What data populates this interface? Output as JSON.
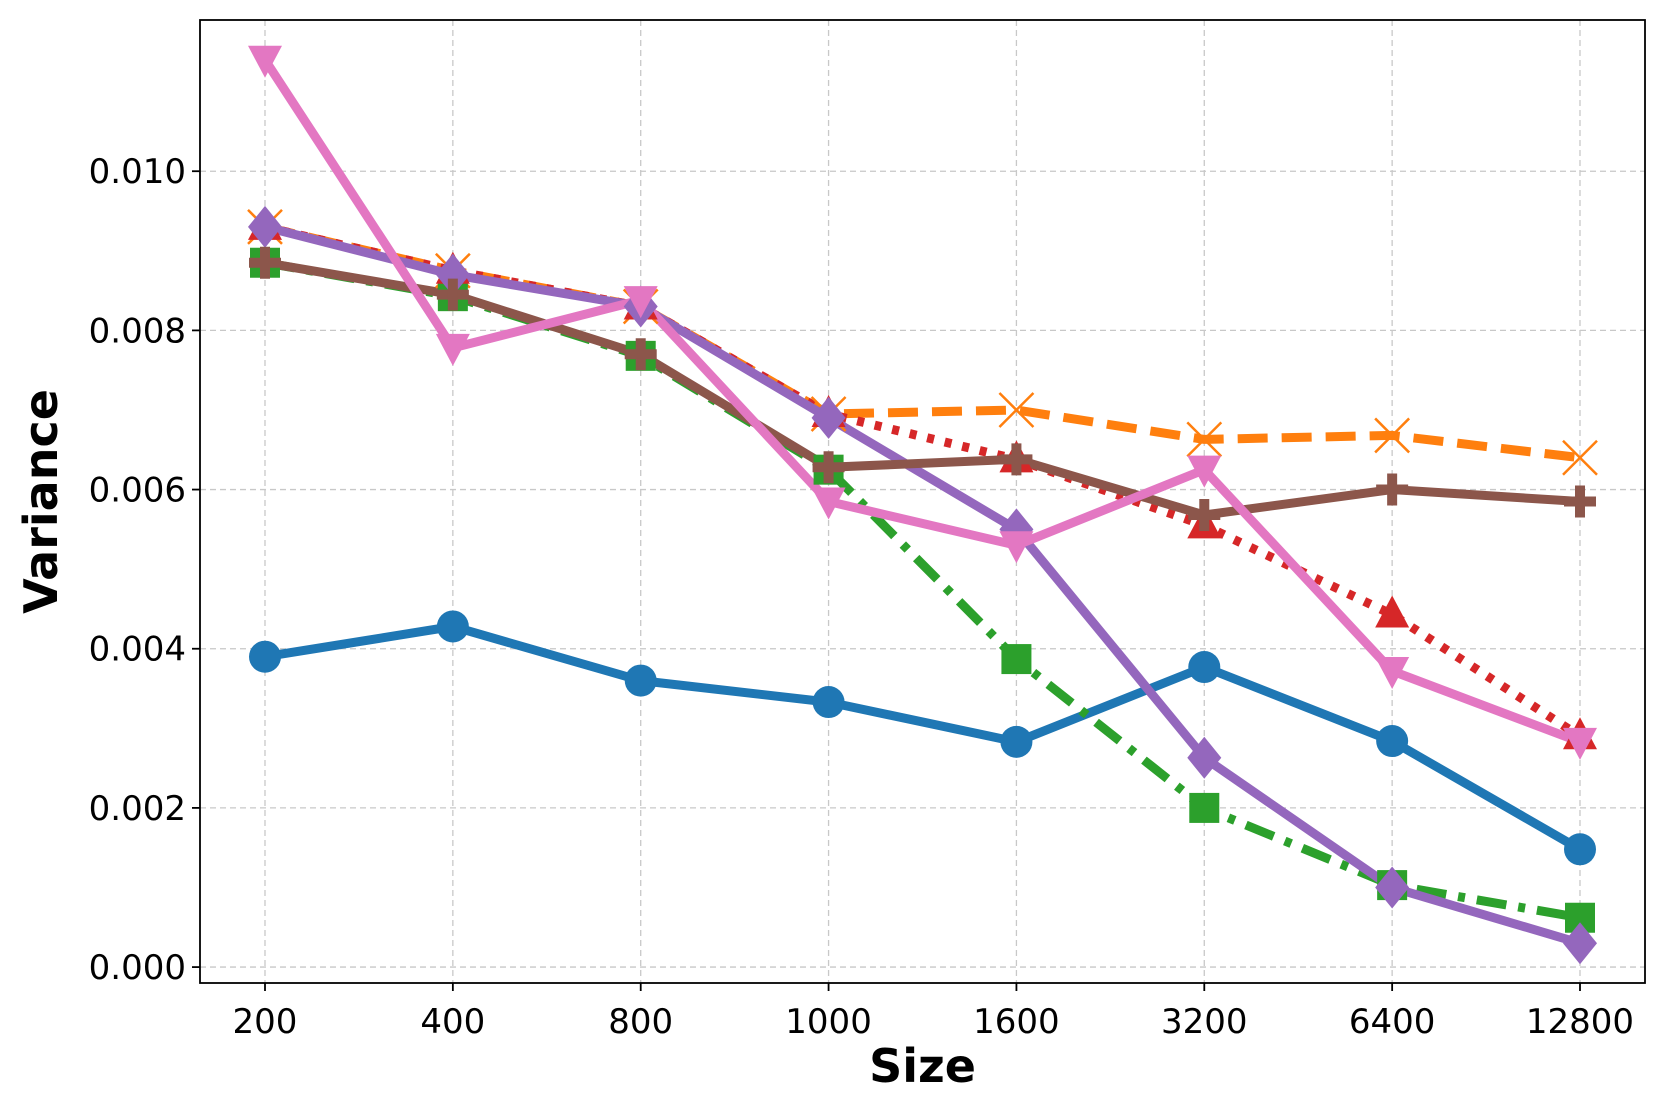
{
  "chart_data": {
    "type": "line",
    "title": "",
    "xlabel": "Size",
    "ylabel": "Variance",
    "categories": [
      "200",
      "400",
      "800",
      "1000",
      "1600",
      "3200",
      "6400",
      "12800"
    ],
    "ylim": [
      -0.0002,
      0.0119
    ],
    "yticks": [
      "0.000",
      "0.002",
      "0.004",
      "0.006",
      "0.008",
      "0.010"
    ],
    "grid": true,
    "legend": "none",
    "series": [
      {
        "color": "#1f77b4",
        "dash": "solid",
        "marker": "circle",
        "values": [
          0.0039,
          0.00428,
          0.0036,
          0.00333,
          0.00283,
          0.00377,
          0.00284,
          0.00148
        ]
      },
      {
        "color": "#ff7f0e",
        "dash": "dashed",
        "marker": "x",
        "values": [
          0.0093,
          0.00875,
          0.0083,
          0.00695,
          0.007,
          0.00663,
          0.00668,
          0.0064
        ]
      },
      {
        "color": "#2ca02c",
        "dash": "dashdot",
        "marker": "square",
        "values": [
          0.00885,
          0.00843,
          0.00768,
          0.00625,
          0.00387,
          0.002,
          0.00103,
          0.00062
        ]
      },
      {
        "color": "#d62728",
        "dash": "dotted",
        "marker": "triangle-up",
        "values": [
          0.0093,
          0.00875,
          0.0083,
          0.00695,
          0.00638,
          0.00555,
          0.00443,
          0.0029
        ]
      },
      {
        "color": "#9467bd",
        "dash": "solid",
        "marker": "diamond",
        "values": [
          0.0093,
          0.0087,
          0.0083,
          0.0069,
          0.0055,
          0.00263,
          0.001,
          0.0003
        ]
      },
      {
        "color": "#8c564b",
        "dash": "solid",
        "marker": "plus",
        "values": [
          0.00885,
          0.00845,
          0.0077,
          0.00628,
          0.00638,
          0.00568,
          0.006,
          0.00585
        ]
      },
      {
        "color": "#e377c2",
        "dash": "solid",
        "marker": "triangle-down",
        "values": [
          0.0114,
          0.00778,
          0.00838,
          0.00585,
          0.0053,
          0.00625,
          0.00372,
          0.00283
        ]
      }
    ]
  }
}
